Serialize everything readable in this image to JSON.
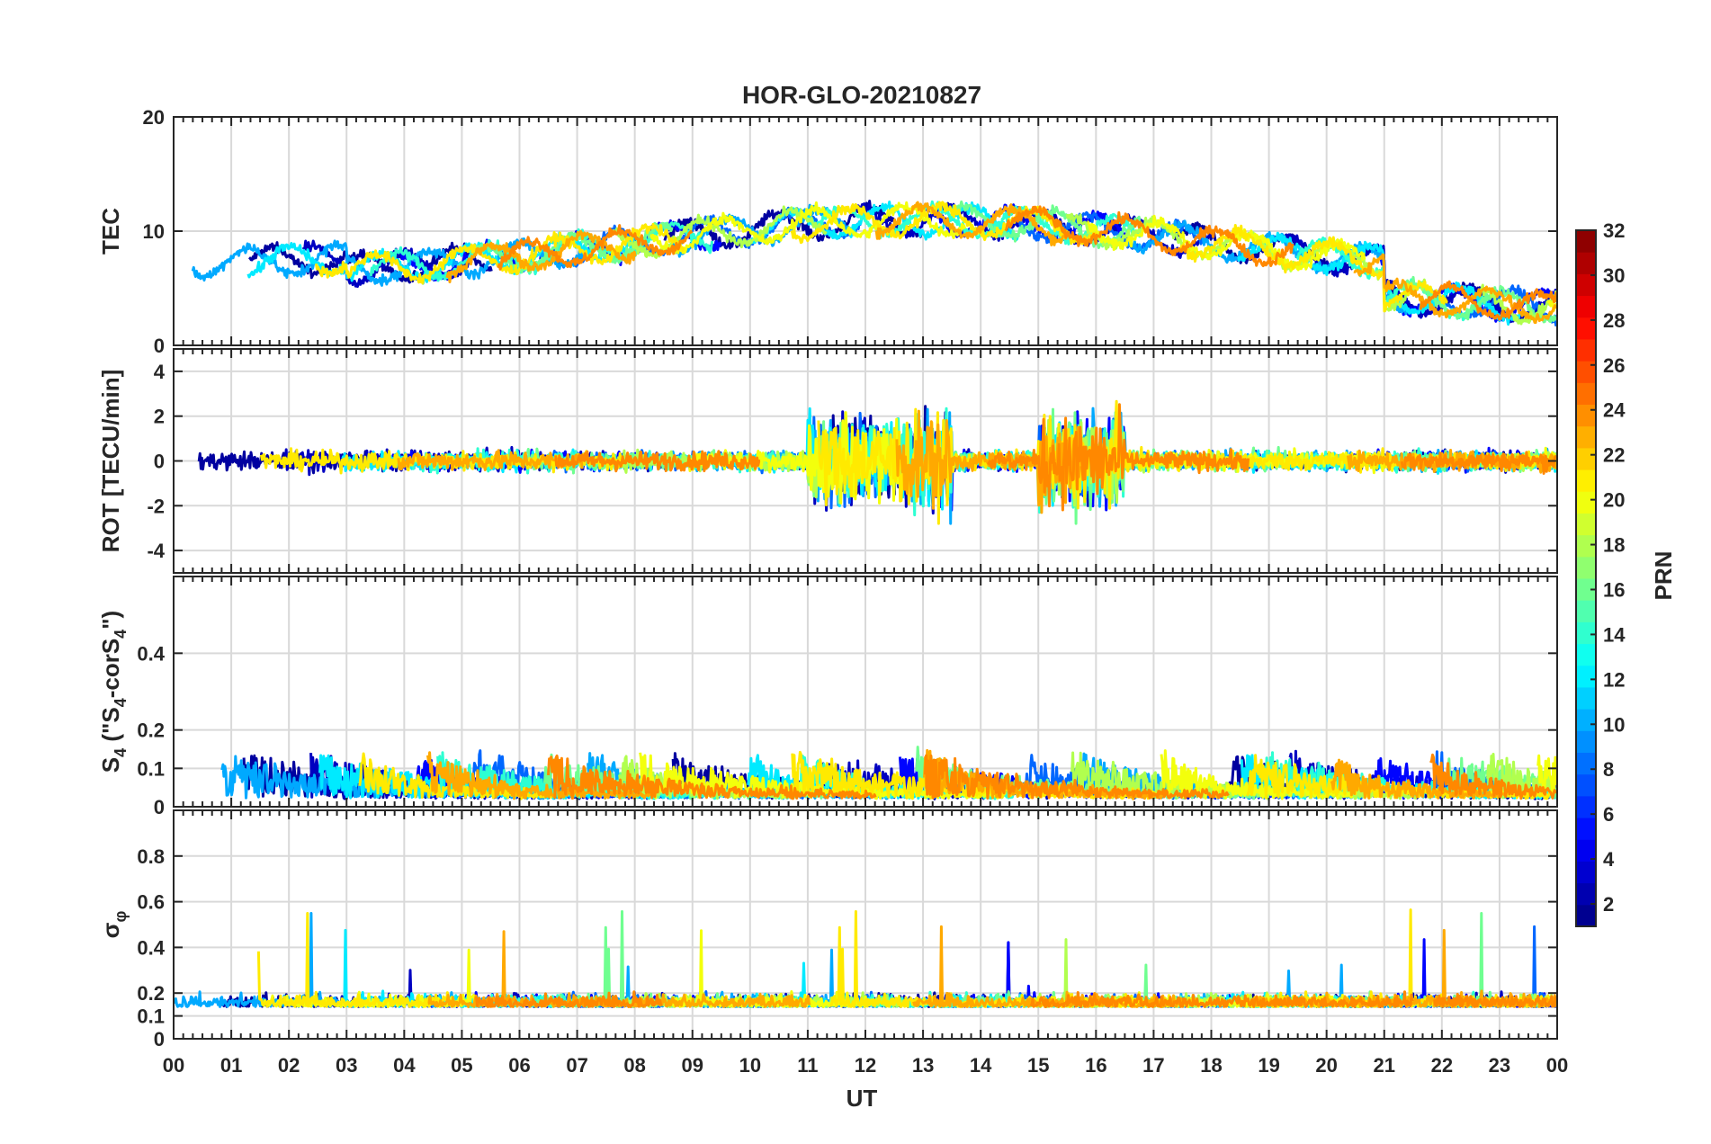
{
  "chart_data": [
    {
      "type": "line",
      "title": "HOR-GLO-20210827",
      "ylabel": "TEC",
      "ylim": [
        0,
        20
      ],
      "yticks": [
        "0",
        "10",
        "20"
      ],
      "grid": true
    },
    {
      "type": "line",
      "ylabel": "ROT [TECU/min]",
      "ylim": [
        -5,
        5
      ],
      "yticks": [
        "-4",
        "-2",
        "0",
        "2",
        "4"
      ],
      "grid": true
    },
    {
      "type": "line",
      "ylabel_html": "S<tspan dy='8' font-size='18'>4</tspan><tspan dy='-8'> (\"S</tspan><tspan dy='8' font-size='18'>4</tspan><tspan dy='-8'>-corS</tspan><tspan dy='8' font-size='18'>4</tspan><tspan dy='-8'>\")</tspan>",
      "ylim": [
        0,
        0.6
      ],
      "yticks": [
        "0",
        "0.1",
        "0.2",
        "0.4"
      ],
      "grid": true
    },
    {
      "type": "line",
      "ylabel_html": "σ<tspan dy='8' font-size='18'>φ</tspan>",
      "ylim": [
        0,
        1.0
      ],
      "yticks": [
        "0",
        "0.1",
        "0.2",
        "0.4",
        "0.6",
        "0.8"
      ],
      "grid": true
    }
  ],
  "xaxis": {
    "label": "UT",
    "ticks": [
      "00",
      "01",
      "02",
      "03",
      "04",
      "05",
      "06",
      "07",
      "08",
      "09",
      "10",
      "11",
      "12",
      "13",
      "14",
      "15",
      "16",
      "17",
      "18",
      "19",
      "20",
      "21",
      "22",
      "23",
      "00"
    ],
    "range_hours": [
      0,
      24
    ]
  },
  "colorbar": {
    "label": "PRN",
    "range": [
      1,
      32
    ],
    "ticks": [
      "2",
      "4",
      "6",
      "8",
      "10",
      "12",
      "14",
      "16",
      "18",
      "20",
      "22",
      "24",
      "26",
      "28",
      "30",
      "32"
    ],
    "colormap": "jet"
  },
  "series_hint": {
    "prn_values": [
      2,
      3,
      5,
      8,
      10,
      12,
      14,
      16,
      18,
      20,
      21,
      23,
      24
    ]
  }
}
